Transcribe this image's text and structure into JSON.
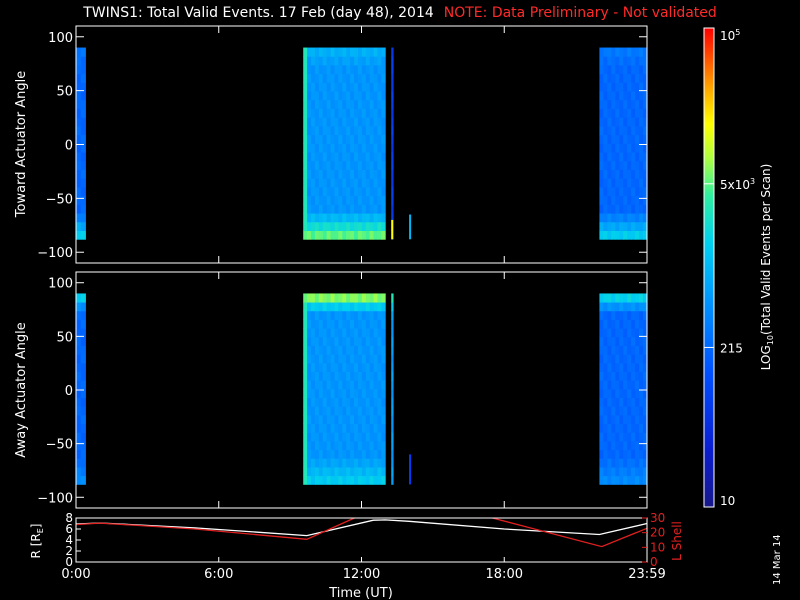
{
  "title": "TWINS1: Total Valid Events. 17 Feb (day  48), 2014",
  "note": "NOTE: Data Preliminary - Not validated",
  "note_color": "#ff2a2a",
  "datestamp": "14 Mar 14",
  "colors": {
    "background": "#000000",
    "foreground": "#ffffff",
    "lshell": "#e02020",
    "radius": "#ffffff"
  },
  "chart_data": [
    {
      "type": "heatmap",
      "panel": "toward",
      "ylabel": "Toward Actuator Angle",
      "ylim": [
        -110,
        110
      ],
      "yticks": [
        100,
        50,
        0,
        -50,
        -100
      ],
      "xlim_hours": [
        0,
        24
      ],
      "data_ylim": [
        -88,
        90
      ],
      "blocks": [
        {
          "start": 0.0,
          "end": 0.4,
          "base": 0.33,
          "peak_low": 0.58,
          "peak_high": 0.38
        },
        {
          "start": 9.55,
          "end": 13.0,
          "base": 0.43,
          "peak_low": 0.72,
          "peak_high": 0.5,
          "edge": 0.62
        },
        {
          "start": 13.25,
          "end": 13.33,
          "base": 0.22,
          "peak_low": 0.22,
          "peak_high": 0.22
        },
        {
          "start": 22.0,
          "end": 24.0,
          "base": 0.33,
          "peak_low": 0.58,
          "peak_high": 0.38
        }
      ],
      "spikes": [
        {
          "t": 13.25,
          "y1": -88,
          "y2": -70,
          "level": 0.8
        },
        {
          "t": 14.0,
          "y1": -88,
          "y2": -65,
          "level": 0.5
        }
      ]
    },
    {
      "type": "heatmap",
      "panel": "away",
      "ylabel": "Away Actuator Angle",
      "ylim": [
        -110,
        110
      ],
      "yticks": [
        100,
        50,
        0,
        -50,
        -100
      ],
      "xlim_hours": [
        0,
        24
      ],
      "data_ylim": [
        -88,
        90
      ],
      "blocks": [
        {
          "start": 0.0,
          "end": 0.4,
          "base": 0.33,
          "peak_low": 0.42,
          "peak_high": 0.62
        },
        {
          "start": 9.55,
          "end": 13.0,
          "base": 0.43,
          "peak_low": 0.56,
          "peak_high": 0.78,
          "edge": 0.62
        },
        {
          "start": 13.25,
          "end": 13.33,
          "base": 0.45,
          "peak_low": 0.45,
          "peak_high": 0.7
        },
        {
          "start": 22.0,
          "end": 24.0,
          "base": 0.33,
          "peak_low": 0.42,
          "peak_high": 0.62
        }
      ],
      "spikes": [
        {
          "t": 14.0,
          "y1": -88,
          "y2": -60,
          "level": 0.22
        }
      ]
    },
    {
      "type": "line",
      "panel": "ephemeris",
      "xlabel": "Time (UT)",
      "xticks": [
        "0:00",
        "6:00",
        "12:00",
        "18:00",
        "23:59"
      ],
      "xtick_hours": [
        0,
        6,
        12,
        18,
        24
      ],
      "ylabel_left": "R [R",
      "ylabel_left_sub": "E",
      "ylabel_left_end": "]",
      "ylim_left": [
        0,
        8
      ],
      "yticks_left": [
        "8",
        "6",
        "4",
        "2",
        "0"
      ],
      "ylabel_right": "L Shell",
      "ylim_right": [
        0,
        30
      ],
      "yticks_right": [
        "30",
        "20",
        "10",
        "0"
      ],
      "series": [
        {
          "axis": "left",
          "color": "#ffffff",
          "x": [
            0,
            1,
            5,
            9.7,
            12.5,
            13,
            14,
            18,
            22,
            24
          ],
          "y": [
            6.9,
            7.1,
            6.2,
            4.8,
            7.6,
            7.65,
            7.4,
            6.0,
            5.0,
            7.0
          ]
        },
        {
          "axis": "right",
          "color": "#e02020",
          "x": [
            0,
            1,
            5,
            9.7,
            11.7
          ],
          "y": [
            25.5,
            26.5,
            22.5,
            15.5,
            31
          ]
        },
        {
          "axis": "right",
          "color": "#e02020",
          "x": [
            17.5,
            22.1,
            24
          ],
          "y": [
            31,
            10.5,
            23
          ]
        }
      ]
    },
    {
      "type": "colorbar",
      "label_parts": [
        "LOG",
        "10",
        "(Total Valid  Events per Scan)"
      ],
      "scale": "log",
      "range": [
        10,
        100000
      ],
      "ticks": [
        {
          "value": 100000,
          "base": "10",
          "exp": "5"
        },
        {
          "value": 5000,
          "base": "5x10",
          "exp": "3"
        },
        {
          "value": 215,
          "base": "215",
          "exp": ""
        },
        {
          "value": 10,
          "base": "10",
          "exp": ""
        }
      ]
    }
  ]
}
